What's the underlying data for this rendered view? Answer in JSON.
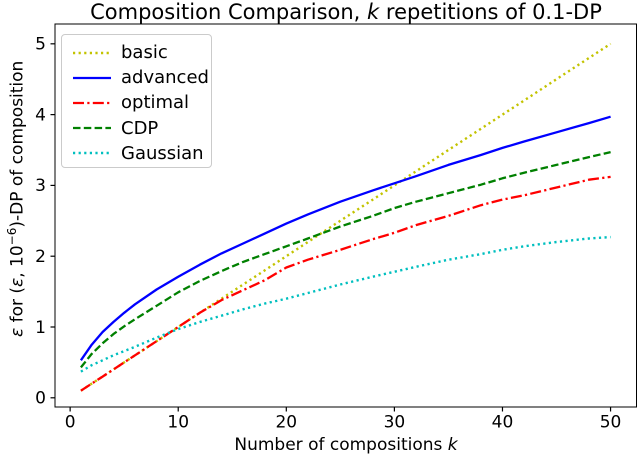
{
  "figure": {
    "title": {
      "pre": "Composition Comparison, ",
      "k": "k",
      "post": " repetitions of 0.1-DP"
    },
    "xlabel": {
      "pre": "Number of compositions ",
      "k": "k"
    },
    "ylabel": {
      "eps1": "ε",
      "mid1": " for (",
      "eps2": "ε",
      "mid2": ", 10",
      "sup": "−6",
      "post": ")-DP of composition"
    }
  },
  "chart_data": {
    "type": "line",
    "title": "Composition Comparison, k repetitions of 0.1-DP",
    "xlabel": "Number of compositions k",
    "ylabel": "ε for (ε, 10⁻⁶)-DP of composition",
    "grid": false,
    "legend_position": "upper left",
    "xlim": [
      -1.4,
      52.4
    ],
    "ylim": [
      -0.13,
      5.28
    ],
    "x_ticks": [
      0,
      10,
      20,
      30,
      40,
      50
    ],
    "y_ticks": [
      0,
      1,
      2,
      3,
      4,
      5
    ],
    "x": [
      1,
      2,
      3,
      4,
      5,
      6,
      8,
      10,
      12,
      14,
      16,
      18,
      20,
      22,
      25,
      28,
      30,
      32,
      35,
      38,
      40,
      42,
      45,
      48,
      50
    ],
    "series": [
      {
        "name": "basic",
        "color": "#c3c300",
        "style": "dotted",
        "width": 2.4,
        "values": [
          0.1,
          0.2,
          0.3,
          0.4,
          0.5,
          0.6,
          0.8,
          1.0,
          1.2,
          1.4,
          1.6,
          1.8,
          2.0,
          2.2,
          2.5,
          2.8,
          3.0,
          3.2,
          3.5,
          3.8,
          4.0,
          4.2,
          4.5,
          4.8,
          5.0
        ]
      },
      {
        "name": "advanced",
        "color": "#0000ff",
        "style": "solid",
        "width": 2.3,
        "values": [
          0.53,
          0.75,
          0.93,
          1.07,
          1.2,
          1.32,
          1.53,
          1.71,
          1.88,
          2.04,
          2.18,
          2.32,
          2.46,
          2.59,
          2.77,
          2.93,
          3.03,
          3.13,
          3.29,
          3.43,
          3.53,
          3.62,
          3.75,
          3.88,
          3.97
        ]
      },
      {
        "name": "optimal",
        "color": "#ff0000",
        "style": "dashdot",
        "width": 2.3,
        "values": [
          0.1,
          0.2,
          0.3,
          0.4,
          0.5,
          0.6,
          0.8,
          1.0,
          1.2,
          1.38,
          1.52,
          1.66,
          1.84,
          1.95,
          2.09,
          2.24,
          2.33,
          2.44,
          2.57,
          2.72,
          2.8,
          2.86,
          2.97,
          3.08,
          3.12
        ]
      },
      {
        "name": "CDP",
        "color": "#008000",
        "style": "dashed",
        "width": 2.3,
        "values": [
          0.43,
          0.62,
          0.77,
          0.9,
          1.01,
          1.11,
          1.3,
          1.49,
          1.65,
          1.79,
          1.92,
          2.03,
          2.14,
          2.25,
          2.42,
          2.57,
          2.68,
          2.77,
          2.89,
          3.01,
          3.1,
          3.18,
          3.29,
          3.4,
          3.47
        ]
      },
      {
        "name": "Gaussian",
        "color": "#00bfbf",
        "style": "dotted",
        "width": 2.4,
        "values": [
          0.37,
          0.46,
          0.53,
          0.6,
          0.66,
          0.72,
          0.85,
          0.97,
          1.07,
          1.16,
          1.25,
          1.33,
          1.4,
          1.48,
          1.6,
          1.71,
          1.78,
          1.85,
          1.95,
          2.03,
          2.09,
          2.14,
          2.2,
          2.25,
          2.27
        ]
      }
    ]
  }
}
